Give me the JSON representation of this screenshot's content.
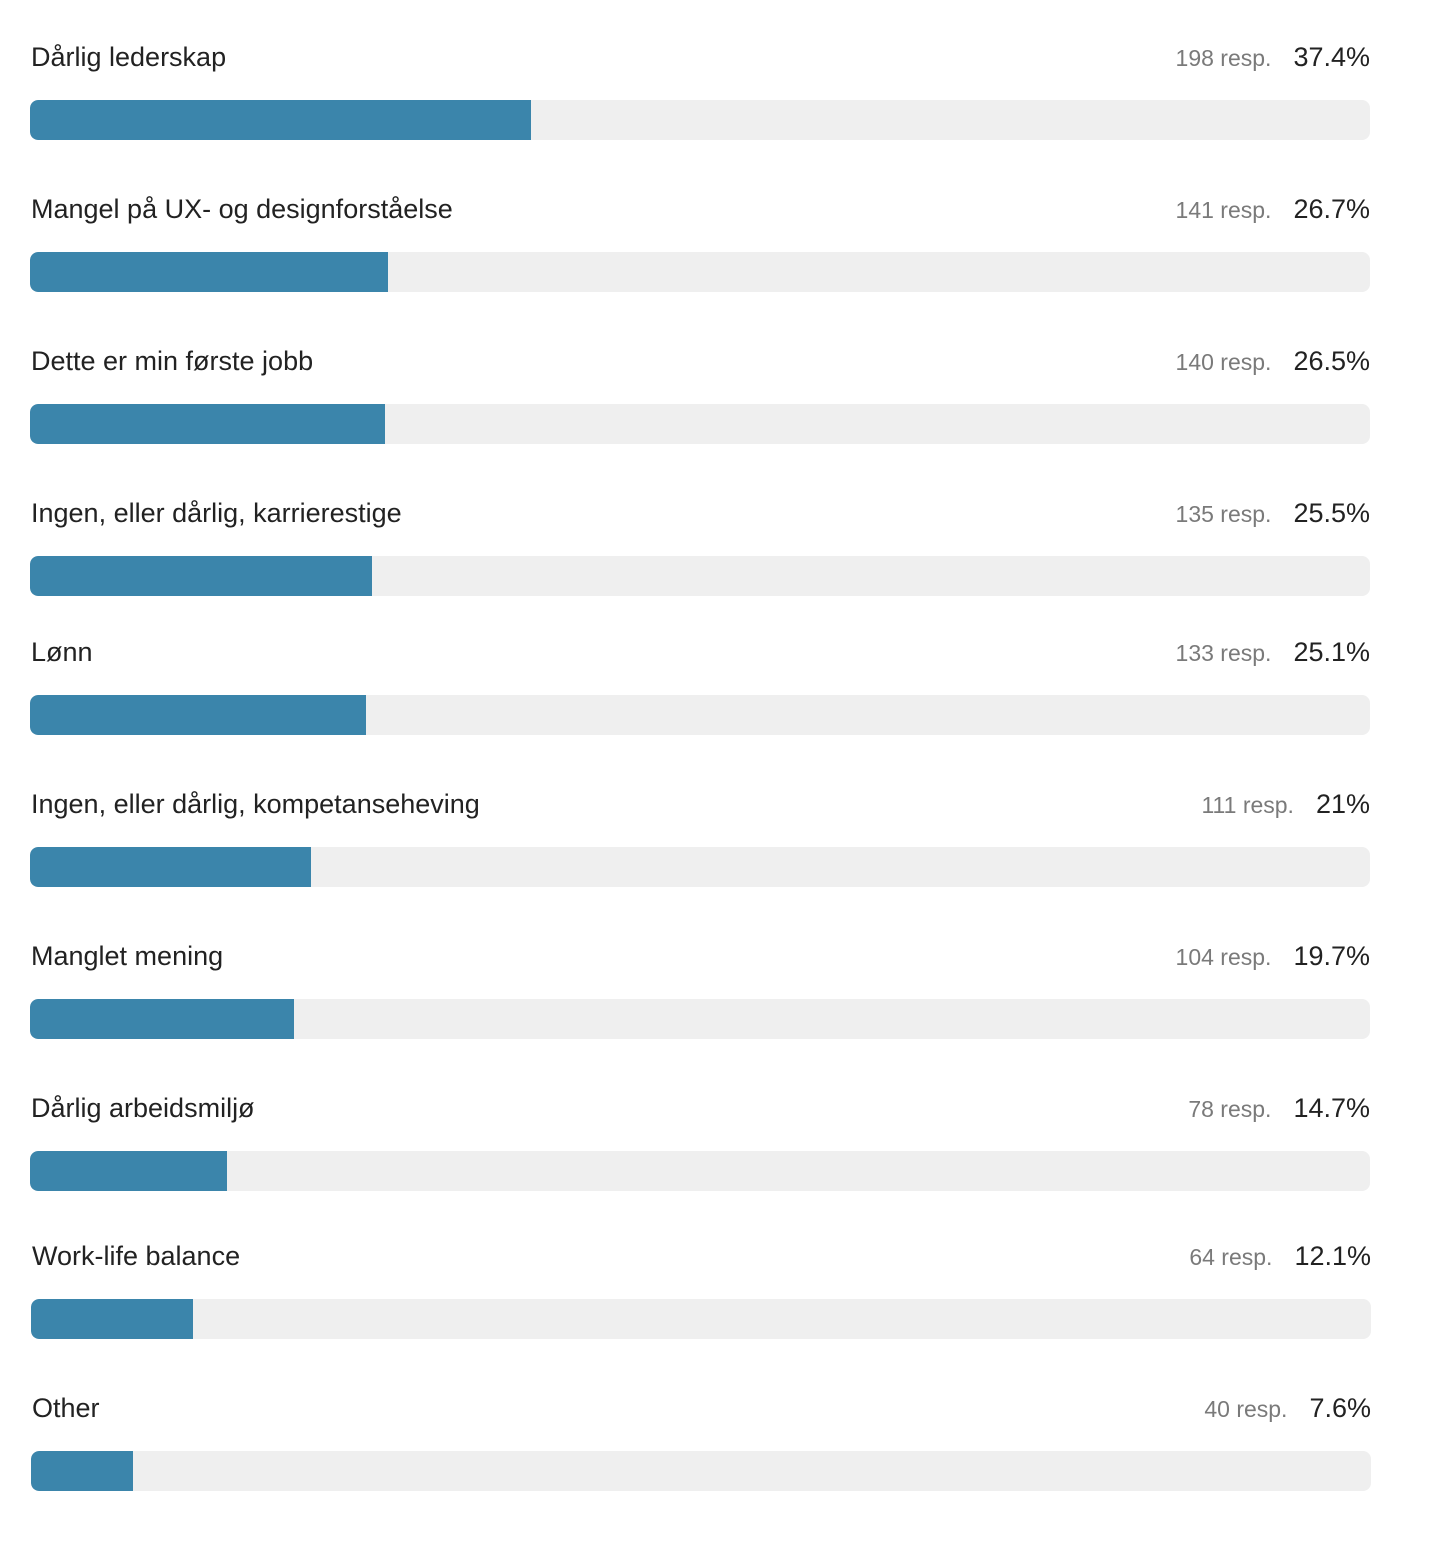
{
  "chart_data": {
    "type": "bar",
    "orientation": "horizontal",
    "title": "",
    "xlabel": "",
    "ylabel": "",
    "xlim": [
      0,
      100
    ],
    "grid": false,
    "legend": null,
    "bar_color": "#3b85ab",
    "track_color": "#efefef",
    "categories": [
      "Dårlig lederskap",
      "Mangel på UX- og designforståelse",
      "Dette er min første jobb",
      "Ingen, eller dårlig, karrierestige",
      "Lønn",
      "Ingen, eller dårlig, kompetanseheving",
      "Manglet mening",
      "Dårlig arbeidsmiljø",
      "Work-life balance",
      "Other"
    ],
    "values": [
      37.4,
      26.7,
      26.5,
      25.5,
      25.1,
      21,
      19.7,
      14.7,
      12.1,
      7.6
    ],
    "responses": [
      198,
      141,
      140,
      135,
      133,
      111,
      104,
      78,
      64,
      40
    ]
  },
  "rows": [
    {
      "label": "Dårlig lederskap",
      "resp": "198 resp.",
      "pct": "37.4%",
      "value": 37.4
    },
    {
      "label": "Mangel på UX- og designforståelse",
      "resp": "141 resp.",
      "pct": "26.7%",
      "value": 26.7
    },
    {
      "label": "Dette er min første jobb",
      "resp": "140 resp.",
      "pct": "26.5%",
      "value": 26.5
    },
    {
      "label": "Ingen, eller dårlig, karrierestige",
      "resp": "135 resp.",
      "pct": "25.5%",
      "value": 25.5
    },
    {
      "label": "Lønn",
      "resp": "133 resp.",
      "pct": "25.1%",
      "value": 25.1
    },
    {
      "label": "Ingen, eller dårlig, kompetanseheving",
      "resp": "111 resp.",
      "pct": "21%",
      "value": 21
    },
    {
      "label": "Manglet mening",
      "resp": "104 resp.",
      "pct": "19.7%",
      "value": 19.7
    },
    {
      "label": "Dårlig arbeidsmiljø",
      "resp": "78 resp.",
      "pct": "14.7%",
      "value": 14.7
    },
    {
      "label": "Work-life balance",
      "resp": "64 resp.",
      "pct": "12.1%",
      "value": 12.1
    },
    {
      "label": "Other",
      "resp": "40 resp.",
      "pct": "7.6%",
      "value": 7.6
    }
  ]
}
